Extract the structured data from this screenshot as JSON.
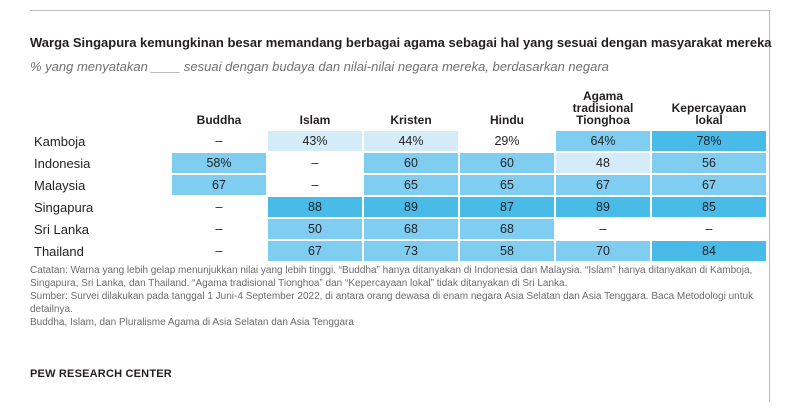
{
  "chart_data": {
    "type": "table",
    "title": "Warga Singapura kemungkinan besar memandang berbagai agama sebagai hal yang sesuai dengan masyarakat mereka",
    "subtitle": "% yang menyatakan ____ sesuai dengan budaya dan nilai-nilai negara mereka, berdasarkan negara",
    "columns": [
      "Buddha",
      "Islam",
      "Kristen",
      "Hindu",
      "Agama tradisional Tionghoa",
      "Kepercayaan lokal"
    ],
    "rows": [
      {
        "country": "Kamboja",
        "cells": [
          "–",
          "43%",
          "44%",
          "29%",
          "64%",
          "78%"
        ]
      },
      {
        "country": "Indonesia",
        "cells": [
          "58%",
          "–",
          "60",
          "60",
          "48",
          "56"
        ]
      },
      {
        "country": "Malaysia",
        "cells": [
          "67",
          "–",
          "65",
          "65",
          "67",
          "67"
        ]
      },
      {
        "country": "Singapura",
        "cells": [
          "–",
          "88",
          "89",
          "87",
          "89",
          "85"
        ]
      },
      {
        "country": "Sri Lanka",
        "cells": [
          "–",
          "50",
          "68",
          "68",
          "–",
          "–"
        ]
      },
      {
        "country": "Thailand",
        "cells": [
          "–",
          "67",
          "73",
          "58",
          "70",
          "84"
        ]
      }
    ],
    "colors": {
      "none": "#ffffff",
      "light": "#d3ecf8",
      "medium": "#7fcdf0",
      "dark": "#48bbe9"
    }
  },
  "notes": [
    "Catatan: Warna yang lebih gelap menunjukkan nilai yang lebih tinggi. “Buddha” hanya ditanyakan di Indonesia dan Malaysia. “Islam” hanya ditanyakan di Kamboja, Singapura, Sri Lanka, dan Thailand. “Agama tradisional Tionghoa” dan “Kepercayaan lokal” tidak ditanyakan di Sri Lanka.",
    "Sumber: Survei dilakukan pada tanggal 1 Juni-4 September 2022, di antara orang dewasa di enam negara Asia Selatan dan Asia Tenggara. Baca Metodologi untuk detailnya.",
    "Buddha, Islam, dan Pluralisme Agama di Asia Selatan dan Asia Tenggara"
  ],
  "source_label": "PEW RESEARCH CENTER"
}
